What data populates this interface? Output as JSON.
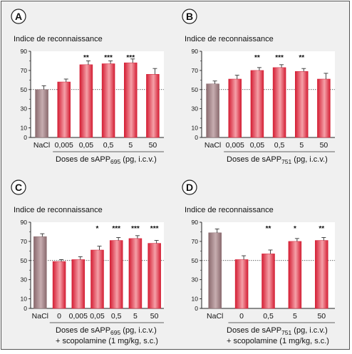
{
  "chart_data": [
    {
      "type": "bar",
      "panel": "A",
      "title": "Indice de reconnaissance",
      "categories": [
        "NaCl",
        "0,005",
        "0,05",
        "0,5",
        "5",
        "50"
      ],
      "values": [
        50,
        58,
        76,
        77,
        78,
        66
      ],
      "errors": [
        4,
        3,
        4,
        3,
        4,
        6
      ],
      "significance": [
        "",
        "",
        "**",
        "***",
        "***",
        ""
      ],
      "xlabel": {
        "main": "Doses de sAPP",
        "sub": "695",
        "suffix": " (pg, i.c.v.)"
      },
      "xlabel2": "",
      "yticks": [
        "0",
        "10",
        "30",
        "50",
        "70",
        "90"
      ],
      "ylim": [
        0,
        90
      ],
      "reference_line": 50
    },
    {
      "type": "bar",
      "panel": "B",
      "title": "Indice de reconnaissance",
      "categories": [
        "NaCl",
        "0,005",
        "0,05",
        "0,5",
        "5",
        "50"
      ],
      "values": [
        56,
        61,
        70,
        73,
        69,
        61
      ],
      "errors": [
        3,
        4,
        3,
        3,
        3,
        6
      ],
      "significance": [
        "",
        "",
        "**",
        "***",
        "**",
        ""
      ],
      "xlabel": {
        "main": "Doses de sAPP",
        "sub": "751",
        "suffix": " (pg, i.c.v.)"
      },
      "xlabel2": "",
      "yticks": [
        "0",
        "10",
        "30",
        "50",
        "70",
        "90"
      ],
      "ylim": [
        0,
        90
      ],
      "reference_line": 50
    },
    {
      "type": "bar",
      "panel": "C",
      "title": "Indice de reconnaissance",
      "categories": [
        "NaCl",
        "0",
        "0,005",
        "0,05",
        "0,5",
        "5",
        "50"
      ],
      "values": [
        75,
        49,
        51,
        61,
        71,
        73,
        68
      ],
      "errors": [
        3,
        2,
        3,
        4,
        3,
        3,
        3
      ],
      "significance": [
        "",
        "",
        "",
        "*",
        "***",
        "***",
        "***"
      ],
      "xlabel": {
        "main": "Doses de sAPP",
        "sub": "695",
        "suffix": " (pg, i.c.v.)"
      },
      "xlabel2": "+ scopolamine (1 mg/kg, s.c.)",
      "yticks": [
        "0",
        "10",
        "30",
        "50",
        "70",
        "90"
      ],
      "ylim": [
        0,
        90
      ],
      "reference_line": 50
    },
    {
      "type": "bar",
      "panel": "D",
      "title": "Indice de reconnaissance",
      "categories": [
        "NaCl",
        "0",
        "0,5",
        "5",
        "50"
      ],
      "values": [
        79,
        51,
        57,
        70,
        71
      ],
      "errors": [
        4,
        4,
        4,
        3,
        3
      ],
      "significance": [
        "",
        "",
        "**",
        "*",
        "**"
      ],
      "xlabel": {
        "main": "Doses de sAPP",
        "sub": "751",
        "suffix": " (pg, i.c.v.)"
      },
      "xlabel2": "+ scopolamine (1 mg/kg, s.c.)",
      "yticks": [
        "0",
        "10",
        "30",
        "50",
        "70",
        "90"
      ],
      "ylim": [
        0,
        90
      ],
      "reference_line": 50
    }
  ],
  "colors": {
    "frame_bg": "#f0f0f0",
    "plot_bg": "#ffffff",
    "control_bar": "#8a6a6e",
    "control_bar_light": "#c7adb0",
    "treated_bar": "#d41e34",
    "treated_bar_light": "#f5a0a8",
    "error": "#333333",
    "badge_fill": "#ffffff",
    "badge_stroke": "#222222"
  }
}
